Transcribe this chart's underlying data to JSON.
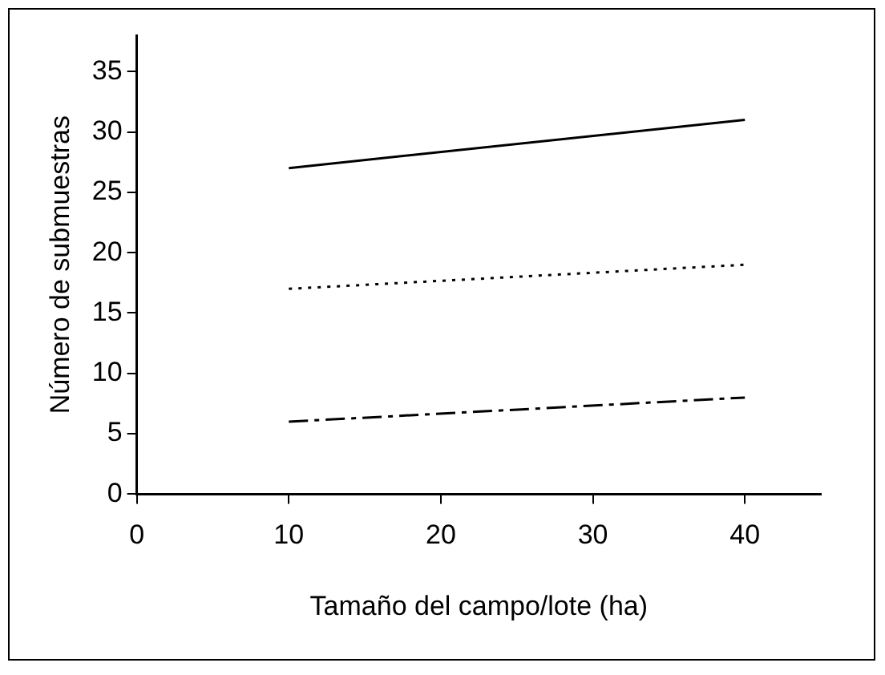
{
  "chart_data": {
    "type": "line",
    "xlabel": "Tamaño del campo/lote (ha)",
    "ylabel": "Número de submuestras",
    "x": [
      10,
      40
    ],
    "series": [
      {
        "color": "#000000",
        "values": [
          27,
          31
        ],
        "line_style": "solid"
      },
      {
        "color": "#000000",
        "values": [
          17,
          19
        ],
        "line_style": "dotted"
      },
      {
        "color": "#000000",
        "values": [
          6,
          8
        ],
        "line_style": "dashed"
      }
    ],
    "xlim": [
      0,
      45
    ],
    "xticks": [
      0,
      10,
      20,
      30,
      40
    ],
    "ylim": [
      0,
      38
    ],
    "yticks": [
      0,
      5,
      10,
      15,
      20,
      25,
      30,
      35
    ],
    "grid": false,
    "legend": false,
    "marker": "none"
  }
}
